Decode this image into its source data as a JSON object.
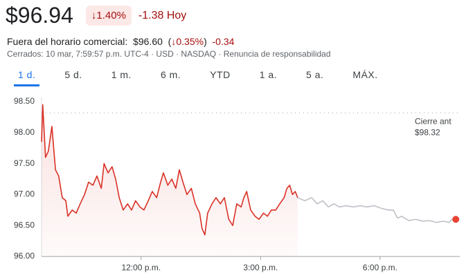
{
  "header": {
    "price": "$96.94",
    "change_percent": "1.40%",
    "change": "-1.38",
    "change_period": "Hoy",
    "after_hours_label": "Fuera del horario comercial:",
    "after_hours_price": "$96.60",
    "after_hours_change_percent": "0.35%",
    "after_hours_change": "-0.34",
    "info": "Cerrados: 10 mar, 7:59:57 p.m. UTC-4 · USD · NASDAQ · Renuncia de responsabilidad"
  },
  "tabs": [
    "1 d.",
    "5 d.",
    "1 m.",
    "6 m.",
    "YTD",
    "1 a.",
    "5 a.",
    "MÁX."
  ],
  "chart_data": {
    "type": "line",
    "previous_close": {
      "label": "Cierre ant",
      "value": 98.32,
      "value_label": "$98.32"
    },
    "xlim": [
      9.5,
      20
    ],
    "ylim": [
      96,
      98.5
    ],
    "xticks": [
      {
        "value": 12,
        "label": "12:00 p.m."
      },
      {
        "value": 15,
        "label": "3:00 p.m."
      },
      {
        "value": 18,
        "label": "6:00 p.m."
      }
    ],
    "yticks": [
      {
        "value": 96,
        "label": "96.00"
      },
      {
        "value": 96.5,
        "label": "96.50"
      },
      {
        "value": 97,
        "label": "97.00"
      },
      {
        "value": 97.5,
        "label": "97.50"
      },
      {
        "value": 98,
        "label": "98.00"
      },
      {
        "value": 98.5,
        "label": "98.50"
      }
    ],
    "series": [
      {
        "color": "#d93025",
        "fill": true,
        "x": [
          9.5,
          9.53,
          9.6,
          9.67,
          9.76,
          9.85,
          9.93,
          10.02,
          10.11,
          10.16,
          10.27,
          10.37,
          10.47,
          10.58,
          10.68,
          10.79,
          10.89,
          11.0,
          11.07,
          11.17,
          11.27,
          11.36,
          11.45,
          11.55,
          11.66,
          11.76,
          11.86,
          11.97,
          12.07,
          12.18,
          12.28,
          12.39,
          12.49,
          12.56,
          12.67,
          12.77,
          12.87,
          12.96,
          13.05,
          13.15,
          13.26,
          13.36,
          13.47,
          13.53,
          13.6,
          13.67,
          13.78,
          13.88,
          13.99,
          14.09,
          14.2,
          14.3,
          14.4,
          14.51,
          14.58,
          14.65,
          14.75,
          14.86,
          14.96,
          15.07,
          15.17,
          15.27,
          15.38,
          15.48,
          15.59,
          15.66,
          15.73,
          15.8,
          15.87,
          15.93
        ],
        "values": [
          97.85,
          98.45,
          97.6,
          97.7,
          98.1,
          97.4,
          97.3,
          96.95,
          96.9,
          96.65,
          96.75,
          96.7,
          96.85,
          97.0,
          97.2,
          97.15,
          97.3,
          97.1,
          97.5,
          97.35,
          97.45,
          97.25,
          96.95,
          96.75,
          96.85,
          96.75,
          96.9,
          96.8,
          96.75,
          96.9,
          97.05,
          96.95,
          97.2,
          97.35,
          97.15,
          97.25,
          97.1,
          97.4,
          97.2,
          97.0,
          97.1,
          96.85,
          96.7,
          96.45,
          96.35,
          96.7,
          96.85,
          96.95,
          96.85,
          96.95,
          96.6,
          96.5,
          96.85,
          96.8,
          96.95,
          97.05,
          96.75,
          96.65,
          96.6,
          96.7,
          96.65,
          96.75,
          96.75,
          96.85,
          96.95,
          97.1,
          97.15,
          97.0,
          97.05,
          96.95
        ]
      },
      {
        "color": "#bdc1c6",
        "fill": false,
        "x": [
          15.93,
          16.11,
          16.28,
          16.42,
          16.56,
          16.7,
          16.84,
          16.98,
          17.15,
          17.33,
          17.5,
          17.67,
          17.85,
          18.02,
          18.2,
          18.33,
          18.44,
          18.54,
          18.72,
          18.89,
          19.07,
          19.24,
          19.41,
          19.59,
          19.73,
          19.8,
          19.9
        ],
        "values": [
          96.95,
          96.9,
          96.95,
          96.85,
          96.9,
          96.8,
          96.85,
          96.8,
          96.82,
          96.8,
          96.82,
          96.8,
          96.82,
          96.78,
          96.75,
          96.75,
          96.62,
          96.65,
          96.58,
          96.6,
          96.57,
          96.58,
          96.55,
          96.57,
          96.55,
          96.6,
          96.6
        ]
      }
    ],
    "end_marker_color": "#ea4335"
  }
}
